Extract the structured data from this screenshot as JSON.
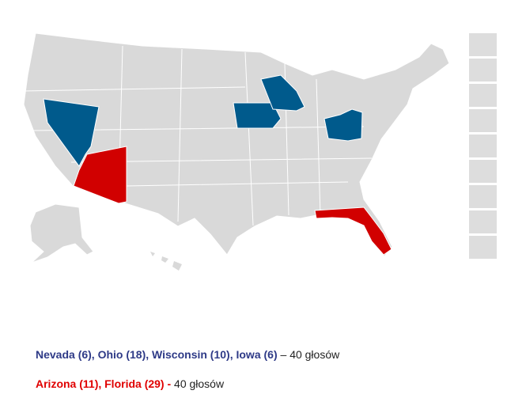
{
  "legend": [
    {
      "label": "Nevada (6), Ohio (18), Wisconsin (10), Iowa (6)",
      "separator": " – ",
      "total": "40 głosów",
      "color": "#2e3a87",
      "map_color": "#005a8c"
    },
    {
      "label": "Arizona (11), Florida (29) -",
      "separator": " ",
      "total": "40 głosów",
      "color": "#e00000",
      "map_color": "#d10000"
    }
  ]
}
